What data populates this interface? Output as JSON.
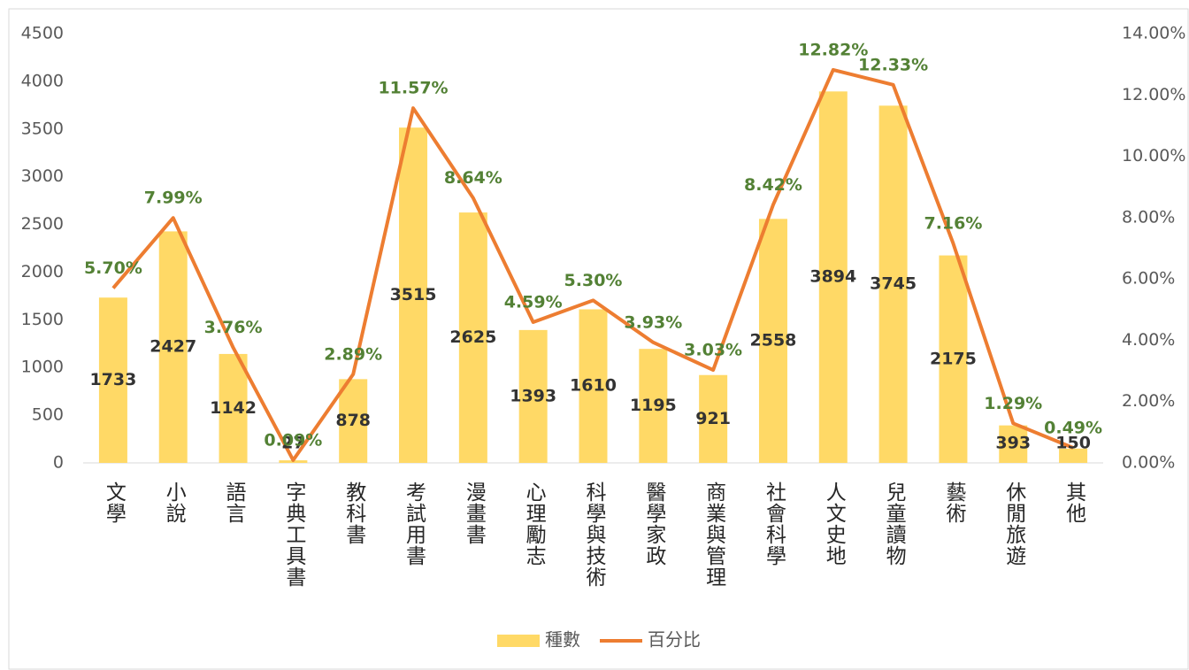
{
  "chart_data": {
    "type": "bar+line",
    "categories": [
      "文學",
      "小說",
      "語言",
      "字典工具書",
      "教科書",
      "考試用書",
      "漫畫書",
      "心理勵志",
      "科學與技術",
      "醫學家政",
      "商業與管理",
      "社會科學",
      "人文史地",
      "兒童讀物",
      "藝術",
      "休閒旅遊",
      "其他"
    ],
    "series": [
      {
        "name": "種數",
        "color": "#FFD966",
        "type": "bar",
        "values": [
          1733,
          2427,
          1142,
          27,
          878,
          3515,
          2625,
          1393,
          1610,
          1195,
          921,
          2558,
          3894,
          3745,
          2175,
          393,
          150
        ]
      },
      {
        "name": "百分比",
        "color": "#ED7D31",
        "type": "line",
        "axis": "y2",
        "values": [
          5.7,
          7.99,
          3.76,
          0.09,
          2.89,
          11.57,
          8.64,
          4.59,
          5.3,
          3.93,
          3.03,
          8.42,
          12.82,
          12.33,
          7.16,
          1.29,
          0.49
        ],
        "value_labels": [
          "5.70%",
          "7.99%",
          "3.76%",
          "0.09%",
          "2.89%",
          "11.57%",
          "8.64%",
          "4.59%",
          "5.30%",
          "3.93%",
          "3.03%",
          "8.42%",
          "12.82%",
          "12.33%",
          "7.16%",
          "1.29%",
          "0.49%"
        ]
      }
    ],
    "ylim": [
      0,
      4500
    ],
    "yticks": [
      0,
      500,
      1000,
      1500,
      2000,
      2500,
      3000,
      3500,
      4000,
      4500
    ],
    "y2lim": [
      0,
      14
    ],
    "y2ticks": [
      {
        "value": 0,
        "label": "0.00%"
      },
      {
        "value": 2,
        "label": "2.00%"
      },
      {
        "value": 4,
        "label": "4.00%"
      },
      {
        "value": 6,
        "label": "6.00%"
      },
      {
        "value": 8,
        "label": "8.00%"
      },
      {
        "value": 10,
        "label": "10.00%"
      },
      {
        "value": 12,
        "label": "12.00%"
      },
      {
        "value": 14,
        "label": "14.00%"
      }
    ],
    "legend": "bottom"
  }
}
